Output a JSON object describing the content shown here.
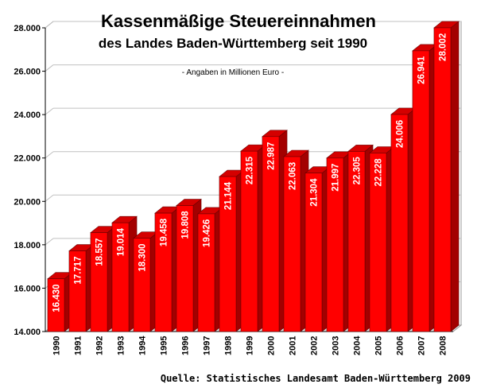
{
  "chart_data": {
    "type": "bar",
    "title": "Kassenmäßige Steuereinnahmen",
    "subtitle": "des Landes Baden-Württemberg seit 1990",
    "note": "- Angaben in Millionen Euro -",
    "source": "Quelle: Statistisches Landesamt Baden-Württemberg 2009",
    "categories": [
      "1990",
      "1991",
      "1992",
      "1993",
      "1994",
      "1995",
      "1996",
      "1997",
      "1998",
      "1999",
      "2000",
      "2001",
      "2002",
      "2003",
      "2004",
      "2005",
      "2006",
      "2007",
      "2008"
    ],
    "values": [
      16430,
      17717,
      18557,
      19014,
      18300,
      19458,
      19808,
      19426,
      21144,
      22315,
      22987,
      22063,
      21304,
      21997,
      22305,
      22228,
      24006,
      26941,
      28002
    ],
    "value_labels": [
      "16.430",
      "17.717",
      "18.557",
      "19.014",
      "18.300",
      "19.458",
      "19.808",
      "19.426",
      "21.144",
      "22.315",
      "22.987",
      "22.063",
      "21.304",
      "21.997",
      "22.305",
      "22.228",
      "24.006",
      "26.941",
      "28.002"
    ],
    "ylim": [
      14000,
      28000
    ],
    "yticks": [
      14000,
      16000,
      18000,
      20000,
      22000,
      24000,
      26000,
      28000
    ],
    "ytick_labels": [
      "14.000",
      "16.000",
      "18.000",
      "20.000",
      "22.000",
      "24.000",
      "26.000",
      "28.000"
    ],
    "grid": true,
    "colors": {
      "bar_front": "#ff0000",
      "bar_side": "#a30000",
      "bar_top": "#d40000",
      "grid": "#c0c0c0",
      "wall": "#ffffff"
    }
  }
}
